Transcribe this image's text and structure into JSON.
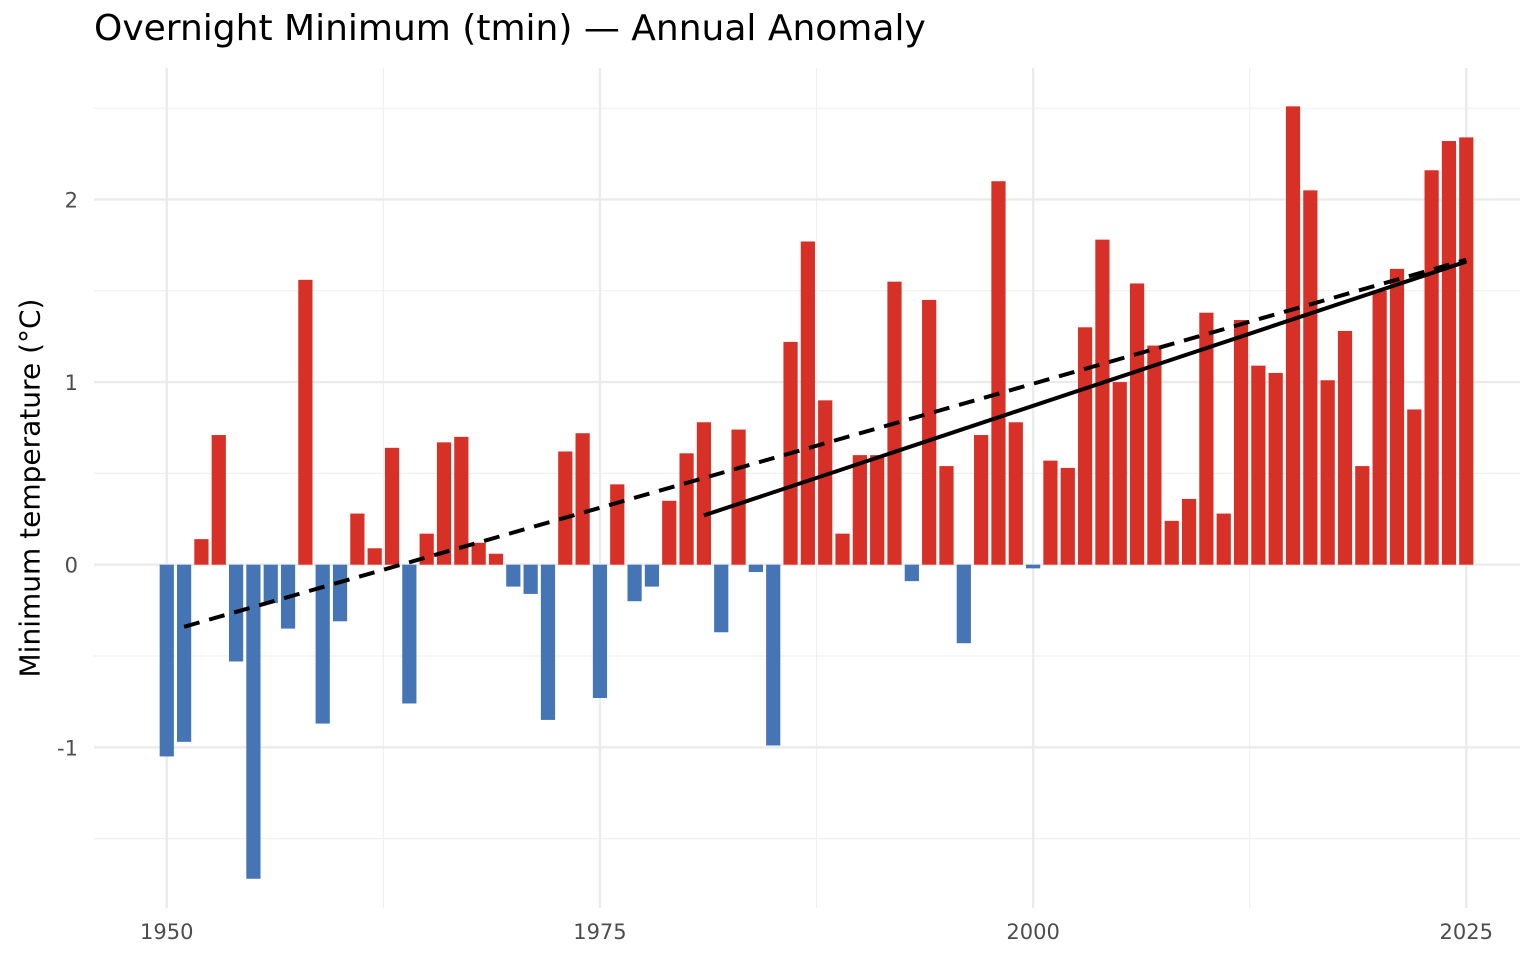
{
  "chart_data": {
    "type": "bar",
    "title": "Overnight Minimum (tmin) — Annual Anomaly",
    "xlabel": "",
    "ylabel": "Minimum temperature (°C)",
    "xlim": [
      1945.8,
      2028.1
    ],
    "ylim": [
      -1.88,
      2.72
    ],
    "x_ticks": [
      "1950",
      "1975",
      "2000",
      "2025"
    ],
    "y_ticks": [
      "-1",
      "0",
      "1",
      "2"
    ],
    "grid": true,
    "legend": "none",
    "colors": {
      "positive": "#d73027",
      "negative": "#4575b4",
      "trend": "#000000"
    },
    "years": [
      1950,
      1951,
      1952,
      1953,
      1954,
      1955,
      1956,
      1957,
      1958,
      1959,
      1960,
      1961,
      1962,
      1963,
      1964,
      1965,
      1966,
      1967,
      1968,
      1969,
      1970,
      1971,
      1972,
      1973,
      1974,
      1975,
      1976,
      1977,
      1978,
      1979,
      1980,
      1981,
      1982,
      1983,
      1984,
      1985,
      1986,
      1987,
      1988,
      1989,
      1990,
      1991,
      1992,
      1993,
      1994,
      1995,
      1996,
      1997,
      1998,
      1999,
      2000,
      2001,
      2002,
      2003,
      2004,
      2005,
      2006,
      2007,
      2008,
      2009,
      2010,
      2011,
      2012,
      2013,
      2014,
      2015,
      2016,
      2017,
      2018,
      2019,
      2020,
      2021,
      2022,
      2023,
      2024,
      2025
    ],
    "values": [
      -1.05,
      -0.97,
      0.14,
      0.71,
      -0.53,
      -1.72,
      -0.21,
      -0.35,
      1.56,
      -0.87,
      -0.31,
      0.28,
      0.09,
      0.64,
      -0.76,
      0.17,
      0.67,
      0.7,
      0.12,
      0.06,
      -0.12,
      -0.16,
      -0.85,
      0.62,
      0.72,
      -0.73,
      0.44,
      -0.2,
      -0.12,
      0.35,
      0.61,
      0.78,
      -0.37,
      0.74,
      -0.04,
      -0.99,
      1.22,
      1.77,
      0.9,
      0.17,
      0.6,
      0.6,
      1.55,
      -0.09,
      1.45,
      0.54,
      -0.43,
      0.71,
      2.1,
      0.78,
      -0.02,
      0.57,
      0.53,
      1.3,
      1.78,
      1.0,
      1.54,
      1.2,
      0.24,
      0.36,
      1.38,
      0.28,
      1.34,
      1.09,
      1.05,
      2.51,
      2.05,
      1.01,
      1.28,
      0.54,
      1.5,
      1.62,
      0.85,
      2.16,
      2.32,
      2.34
    ],
    "trend_lines": [
      {
        "style": "dashed",
        "x": [
          1951,
          2025
        ],
        "y": [
          -0.34,
          1.67
        ]
      },
      {
        "style": "solid",
        "x": [
          1981,
          2025
        ],
        "y": [
          0.27,
          1.66
        ]
      }
    ]
  }
}
